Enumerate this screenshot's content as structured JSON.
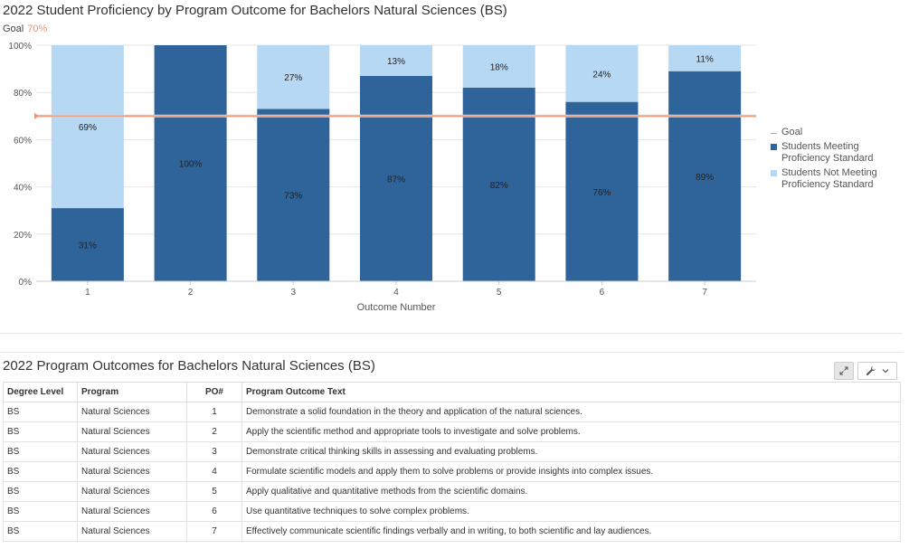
{
  "chart_title": "2022 Student Proficiency by Program Outcome for Bachelors Natural Sciences (BS)",
  "goal_label": "Goal",
  "goal_value_text": "70%",
  "chart_data": {
    "type": "bar",
    "stacked": true,
    "categories": [
      "1",
      "2",
      "3",
      "4",
      "5",
      "6",
      "7"
    ],
    "series": [
      {
        "name": "Students Meeting Proficiency Standard",
        "values": [
          31,
          100,
          73,
          87,
          82,
          76,
          89
        ],
        "labels": [
          "31%",
          "100%",
          "73%",
          "87%",
          "82%",
          "76%",
          "89%"
        ],
        "color": "#2e6499"
      },
      {
        "name": "Students Not Meeting Proficiency Standard",
        "values": [
          69,
          0,
          27,
          13,
          18,
          24,
          11
        ],
        "labels": [
          "69%",
          "",
          "27%",
          "13%",
          "18%",
          "24%",
          "11%"
        ],
        "color": "#b7d8f3"
      }
    ],
    "goal": {
      "name": "Goal",
      "value": 70,
      "color": "#f0926b"
    },
    "xlabel": "Outcome Number",
    "ylabel": "",
    "ylim": [
      0,
      100
    ],
    "yticks": [
      0,
      20,
      40,
      60,
      80,
      100
    ],
    "ytick_labels": [
      "0%",
      "20%",
      "40%",
      "60%",
      "80%",
      "100%"
    ],
    "grid": true,
    "legend_position": "right"
  },
  "legend": [
    {
      "label": "Goal",
      "color": "#f0926b",
      "kind": "line"
    },
    {
      "label": "Students Meeting Proficiency Standard",
      "color": "#2e6499",
      "kind": "swatch"
    },
    {
      "label": "Students Not Meeting Proficiency Standard",
      "color": "#b7d8f3",
      "kind": "swatch"
    }
  ],
  "table": {
    "title": "2022 Program Outcomes for Bachelors Natural Sciences (BS)",
    "columns": [
      "Degree Level",
      "Program",
      "PO#",
      "Program Outcome Text"
    ],
    "rows": [
      [
        "BS",
        "Natural Sciences",
        "1",
        "Demonstrate a solid foundation in the theory and application of the natural sciences."
      ],
      [
        "BS",
        "Natural Sciences",
        "2",
        "Apply the scientific method and appropriate tools to investigate and solve problems."
      ],
      [
        "BS",
        "Natural Sciences",
        "3",
        "Demonstrate critical thinking skills in assessing and evaluating problems."
      ],
      [
        "BS",
        "Natural Sciences",
        "4",
        "Formulate scientific models and apply them to solve problems or provide insights into complex issues."
      ],
      [
        "BS",
        "Natural Sciences",
        "5",
        "Apply qualitative and quantitative methods from the scientific domains."
      ],
      [
        "BS",
        "Natural Sciences",
        "6",
        "Use quantitative techniques to solve complex problems."
      ],
      [
        "BS",
        "Natural Sciences",
        "7",
        "Effectively communicate scientific findings verbally and in writing, to both scientific and lay audiences."
      ]
    ],
    "tools": {
      "expand_icon": "expand-icon",
      "wrench_icon": "wrench-icon",
      "chevron_icon": "chevron-down-icon"
    }
  }
}
